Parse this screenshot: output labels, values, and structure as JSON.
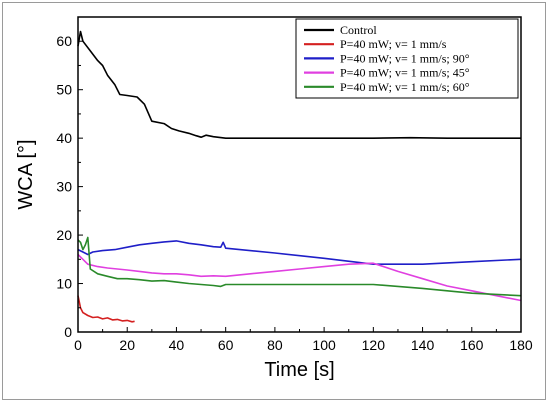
{
  "chart_data": {
    "type": "line",
    "xlabel": "Time [s]",
    "ylabel": "WCA [°]",
    "xlim": [
      0,
      180
    ],
    "ylim": [
      0,
      65
    ],
    "xticks": [
      0,
      20,
      40,
      60,
      80,
      100,
      120,
      140,
      160,
      180
    ],
    "yticks": [
      0,
      10,
      20,
      30,
      40,
      50,
      60
    ],
    "grid": false,
    "legend_position": "top-right",
    "series": [
      {
        "name": "Control",
        "color": "#000000",
        "points": [
          [
            0,
            59
          ],
          [
            1,
            62
          ],
          [
            2,
            60
          ],
          [
            5,
            58
          ],
          [
            8,
            56
          ],
          [
            10,
            55
          ],
          [
            12,
            53
          ],
          [
            15,
            51
          ],
          [
            17,
            49
          ],
          [
            20,
            48.8
          ],
          [
            24,
            48.5
          ],
          [
            27,
            47
          ],
          [
            30,
            43.5
          ],
          [
            35,
            43
          ],
          [
            38,
            42
          ],
          [
            41,
            41.5
          ],
          [
            45,
            41
          ],
          [
            48,
            40.5
          ],
          [
            50,
            40.2
          ],
          [
            52,
            40.6
          ],
          [
            55,
            40.3
          ],
          [
            60,
            40
          ],
          [
            80,
            40
          ],
          [
            100,
            40
          ],
          [
            120,
            40
          ],
          [
            135,
            40.1
          ],
          [
            150,
            40
          ],
          [
            180,
            40
          ]
        ]
      },
      {
        "name": "P=40 mW; v= 1 mm/s",
        "color": "#d42020",
        "points": [
          [
            0,
            7.5
          ],
          [
            1,
            5
          ],
          [
            2,
            4
          ],
          [
            4,
            3.4
          ],
          [
            6,
            3
          ],
          [
            8,
            3.1
          ],
          [
            10,
            2.7
          ],
          [
            12,
            2.9
          ],
          [
            14,
            2.5
          ],
          [
            16,
            2.6
          ],
          [
            18,
            2.3
          ],
          [
            20,
            2.4
          ],
          [
            22,
            2.1
          ],
          [
            23,
            2.2
          ]
        ]
      },
      {
        "name": "P=40 mW; v= 1 mm/s; 90°",
        "color": "#1f1fc8",
        "points": [
          [
            0,
            17
          ],
          [
            2,
            16.5
          ],
          [
            4,
            16
          ],
          [
            6,
            16.5
          ],
          [
            10,
            16.8
          ],
          [
            15,
            17
          ],
          [
            20,
            17.5
          ],
          [
            25,
            18
          ],
          [
            30,
            18.3
          ],
          [
            35,
            18.6
          ],
          [
            40,
            18.8
          ],
          [
            45,
            18.3
          ],
          [
            50,
            18
          ],
          [
            55,
            17.6
          ],
          [
            58,
            17.5
          ],
          [
            59,
            18.5
          ],
          [
            60,
            17.3
          ],
          [
            80,
            16.3
          ],
          [
            100,
            15.2
          ],
          [
            120,
            14
          ],
          [
            140,
            14
          ],
          [
            160,
            14.5
          ],
          [
            180,
            15
          ]
        ]
      },
      {
        "name": "P=40 mW; v= 1 mm/s; 45°",
        "color": "#e040e0",
        "points": [
          [
            0,
            16
          ],
          [
            2,
            15
          ],
          [
            4,
            14
          ],
          [
            8,
            13.5
          ],
          [
            12,
            13.2
          ],
          [
            16,
            13
          ],
          [
            20,
            12.8
          ],
          [
            25,
            12.5
          ],
          [
            30,
            12.2
          ],
          [
            35,
            12
          ],
          [
            40,
            12
          ],
          [
            45,
            11.8
          ],
          [
            50,
            11.5
          ],
          [
            55,
            11.6
          ],
          [
            60,
            11.5
          ],
          [
            70,
            12
          ],
          [
            80,
            12.5
          ],
          [
            90,
            13
          ],
          [
            100,
            13.5
          ],
          [
            110,
            14
          ],
          [
            120,
            14.2
          ],
          [
            130,
            12.5
          ],
          [
            140,
            11
          ],
          [
            150,
            9.5
          ],
          [
            160,
            8.5
          ],
          [
            170,
            7.5
          ],
          [
            180,
            6.5
          ]
        ]
      },
      {
        "name": "P=40 mW; v= 1 mm/s; 60°",
        "color": "#2a8a2a",
        "points": [
          [
            0,
            19
          ],
          [
            1,
            18.5
          ],
          [
            2,
            17
          ],
          [
            3,
            18
          ],
          [
            4,
            19.5
          ],
          [
            5,
            13
          ],
          [
            8,
            12
          ],
          [
            12,
            11.5
          ],
          [
            16,
            11
          ],
          [
            20,
            11
          ],
          [
            25,
            10.8
          ],
          [
            30,
            10.5
          ],
          [
            35,
            10.6
          ],
          [
            40,
            10.3
          ],
          [
            45,
            10
          ],
          [
            50,
            9.8
          ],
          [
            55,
            9.6
          ],
          [
            58,
            9.4
          ],
          [
            60,
            9.8
          ],
          [
            80,
            9.8
          ],
          [
            100,
            9.8
          ],
          [
            120,
            9.8
          ],
          [
            140,
            9
          ],
          [
            160,
            8
          ],
          [
            180,
            7.5
          ]
        ]
      }
    ]
  }
}
